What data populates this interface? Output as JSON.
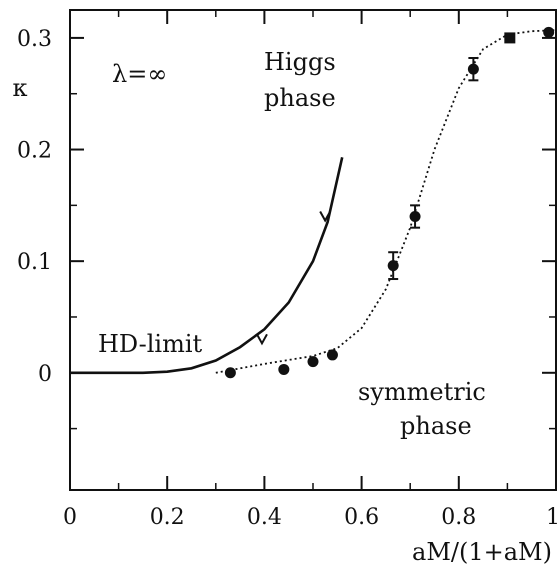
{
  "chart_data": {
    "type": "scatter",
    "title": "",
    "xlabel": "aM/(1+aM)",
    "ylabel": "κ",
    "xlim": [
      0,
      1
    ],
    "ylim": [
      -0.105,
      0.325
    ],
    "grid": false,
    "x_ticks": [
      0,
      0.2,
      0.4,
      0.6,
      0.8,
      1
    ],
    "x_tick_labels": [
      "0",
      "0.2",
      "0.4",
      "0.6",
      "0.8",
      "1"
    ],
    "y_ticks": [
      0,
      0.1,
      0.2,
      0.3
    ],
    "y_tick_labels": [
      "0",
      "0.1",
      "0.2",
      "0.3"
    ],
    "annotations": {
      "lambda": "λ=∞",
      "higgs_line1": "Higgs",
      "higgs_line2": "phase",
      "symmetric_line1": "symmetric",
      "symmetric_line2": "phase",
      "hd_limit": "HD-limit"
    },
    "series": [
      {
        "style": "solid-line",
        "x": [
          0,
          0.15,
          0.2,
          0.25,
          0.3,
          0.35,
          0.4,
          0.45,
          0.5,
          0.53,
          0.56
        ],
        "values": [
          0,
          0,
          0.001,
          0.004,
          0.011,
          0.023,
          0.039,
          0.063,
          0.1,
          0.135,
          0.193
        ],
        "markers": [
          {
            "x": 0.395,
            "y": 0.03
          },
          {
            "x": 0.525,
            "y": 0.14
          }
        ]
      },
      {
        "style": "dotted-line",
        "x": [
          0.3,
          0.4,
          0.5,
          0.55,
          0.6,
          0.65,
          0.7,
          0.75,
          0.8,
          0.85,
          0.9,
          0.95,
          1
        ],
        "values": [
          0,
          0.008,
          0.015,
          0.022,
          0.04,
          0.075,
          0.13,
          0.2,
          0.255,
          0.29,
          0.303,
          0.306,
          0.307
        ]
      },
      {
        "style": "points",
        "points": [
          {
            "x": 0.33,
            "y": 0.0,
            "err": 0
          },
          {
            "x": 0.44,
            "y": 0.003,
            "err": 0
          },
          {
            "x": 0.5,
            "y": 0.01,
            "err": 0
          },
          {
            "x": 0.54,
            "y": 0.016,
            "err": 0
          },
          {
            "x": 0.665,
            "y": 0.096,
            "err": 0.012
          },
          {
            "x": 0.71,
            "y": 0.14,
            "err": 0.01
          },
          {
            "x": 0.83,
            "y": 0.272,
            "err": 0.01
          },
          {
            "x": 0.985,
            "y": 0.305,
            "err": 0
          }
        ],
        "square_point": {
          "x": 0.905,
          "y": 0.3
        }
      }
    ]
  }
}
